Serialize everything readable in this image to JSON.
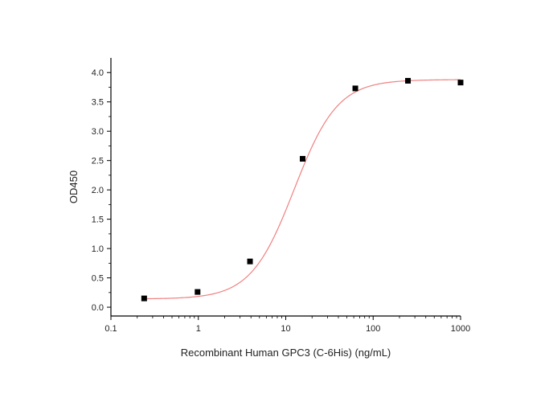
{
  "chart_data": {
    "type": "scatter",
    "title": "",
    "xlabel": "Recombinant Human GPC3 (C-6His) (ng/mL)",
    "ylabel": "OD450",
    "xscale": "log",
    "xlim": [
      0.1,
      1000
    ],
    "ylim": [
      -0.15,
      4.25
    ],
    "x_ticks": [
      0.1,
      1,
      10,
      100,
      1000
    ],
    "x_tick_labels": [
      "0.1",
      "1",
      "10",
      "100",
      "1000"
    ],
    "y_ticks": [
      0,
      0.5,
      1,
      1.5,
      2,
      2.5,
      3,
      3.5,
      4
    ],
    "y_tick_labels": [
      "0.0",
      "0.5",
      "1.0",
      "1.5",
      "2.0",
      "2.5",
      "3.0",
      "3.5",
      "4.0"
    ],
    "grid": false,
    "series": [
      {
        "kind": "points",
        "marker": "square",
        "color": "#000000",
        "x": [
          0.24,
          0.98,
          3.9,
          15.6,
          62.5,
          250,
          1000
        ],
        "y": [
          0.15,
          0.26,
          0.78,
          2.53,
          3.73,
          3.86,
          3.83
        ]
      },
      {
        "kind": "fit",
        "model": "4PL",
        "color": "#f08080",
        "bottom": 0.14,
        "top": 3.88,
        "ec50": 12.5,
        "hill": 1.75
      }
    ]
  }
}
